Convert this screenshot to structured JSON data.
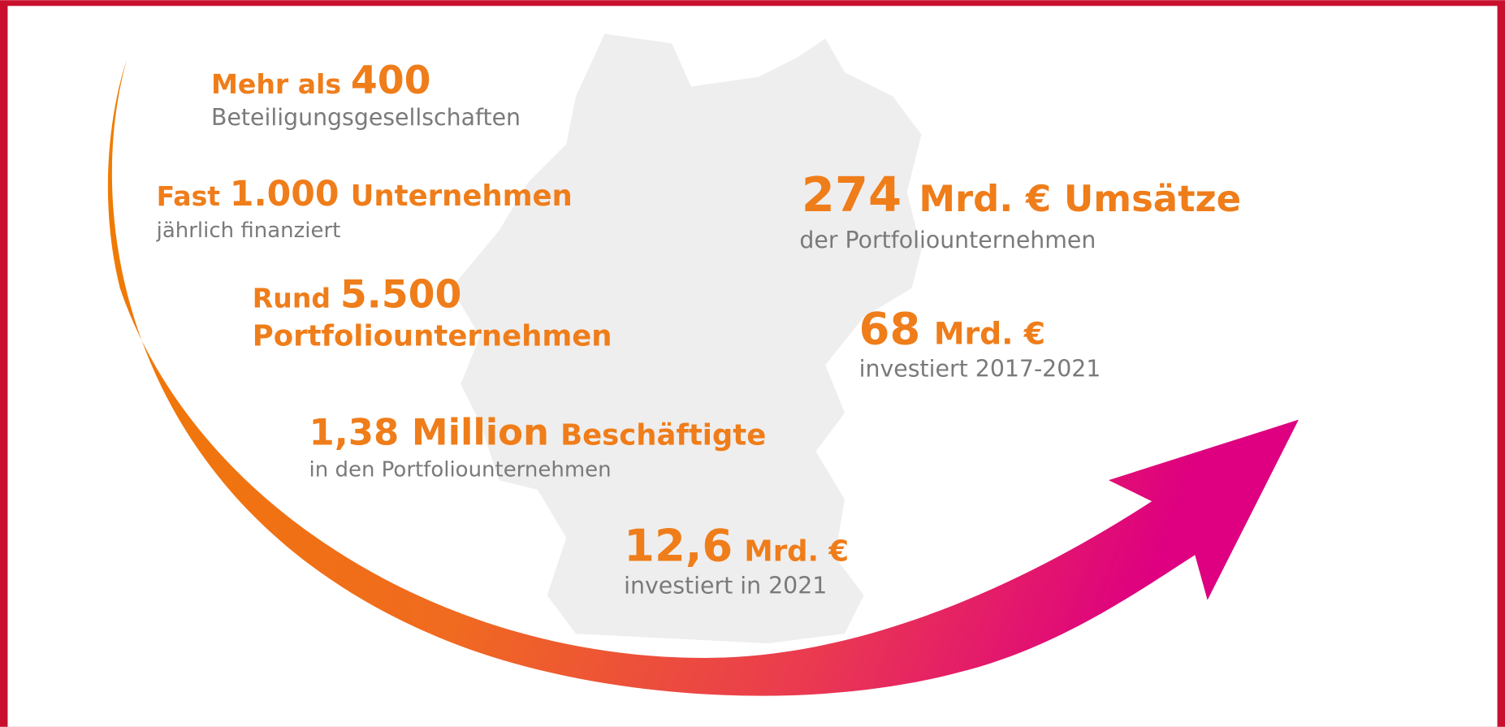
{
  "items": [
    {
      "parts": [
        "Mehr als",
        "400"
      ],
      "subtitle": "Beteiligungsgesellschaften"
    },
    {
      "parts": [
        "Fast",
        "1.000",
        "Unternehmen"
      ],
      "subtitle": "jährlich finanziert"
    },
    {
      "parts": [
        "Rund",
        "5.500"
      ],
      "line2": "Portfoliounternehmen"
    },
    {
      "parts": [
        "1,38 Million",
        "Beschäftigte"
      ],
      "subtitle": "in den Portfoliounternehmen"
    },
    {
      "parts": [
        "12,6",
        "Mrd. €"
      ],
      "subtitle": "investiert in 2021"
    },
    {
      "parts": [
        "274",
        "Mrd. € Umsätze"
      ],
      "subtitle": "der Portfoliounternehmen"
    },
    {
      "parts": [
        "68",
        "Mrd. €"
      ],
      "subtitle": "investiert 2017-2021"
    }
  ]
}
